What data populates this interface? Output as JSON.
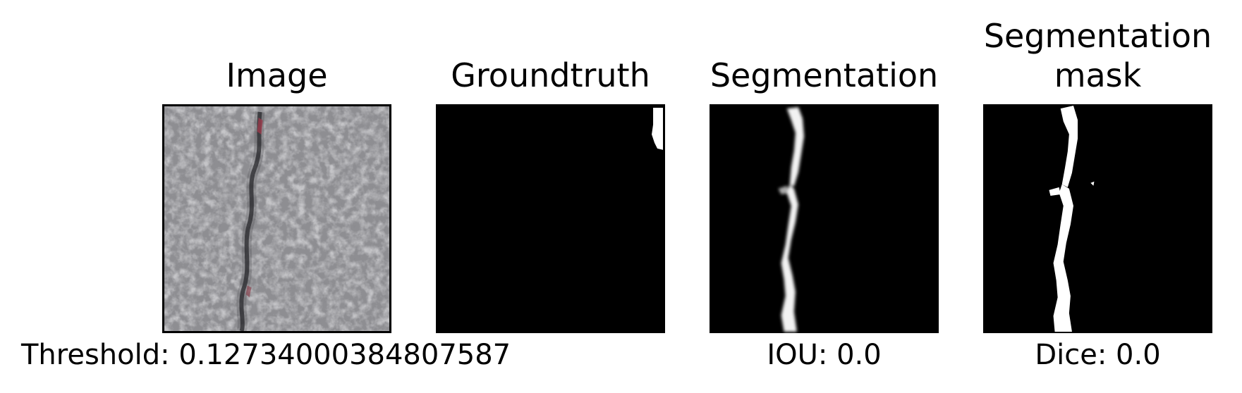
{
  "figure": {
    "panels": [
      {
        "title": "Image"
      },
      {
        "title": "Groundtruth"
      },
      {
        "title": "Segmentation"
      },
      {
        "title_line1": "Segmentation",
        "title_line2": "mask"
      }
    ],
    "captions": {
      "threshold": "Threshold: 0.12734000384807587",
      "iou": "IOU: 0.0",
      "dice": "Dice: 0.0"
    }
  }
}
